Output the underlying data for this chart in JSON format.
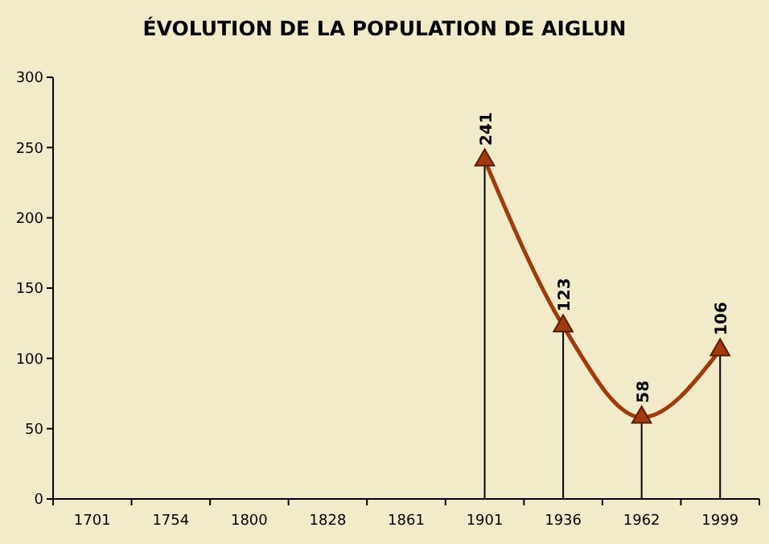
{
  "chart_data": {
    "type": "line",
    "title": "ÉVOLUTION DE LA POPULATION DE AIGLUN",
    "categories": [
      "1701",
      "1754",
      "1800",
      "1828",
      "1861",
      "1901",
      "1936",
      "1962",
      "1999"
    ],
    "series": [
      {
        "color": "#a33a0c",
        "values": [
          null,
          null,
          null,
          null,
          null,
          241,
          123,
          58,
          106
        ]
      }
    ],
    "ylim": [
      0,
      300
    ],
    "yticks": [
      0,
      50,
      100,
      150,
      200,
      250,
      300
    ],
    "marker": "triangle",
    "data_labels": true
  }
}
